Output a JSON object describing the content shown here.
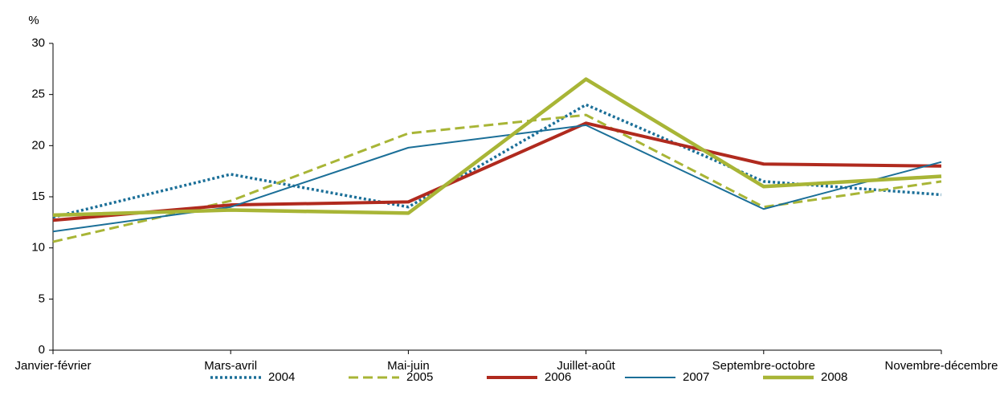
{
  "chart_data": {
    "type": "line",
    "y_label": "%",
    "categories": [
      "Janvier-février",
      "Mars-avril",
      "Mai-juin",
      "Juillet-août",
      "Septembre-octobre",
      "Novembre-décembre"
    ],
    "series": [
      {
        "name": "2004",
        "color": "#1b6f98",
        "style": "dotted",
        "width": 3.5,
        "values": [
          13.0,
          17.2,
          14.0,
          24.0,
          16.5,
          15.2
        ]
      },
      {
        "name": "2005",
        "color": "#a8b536",
        "style": "dashed",
        "width": 3,
        "values": [
          10.6,
          14.6,
          21.2,
          23.0,
          14.0,
          16.5
        ]
      },
      {
        "name": "2006",
        "color": "#b02a1e",
        "style": "solid",
        "width": 4,
        "values": [
          12.7,
          14.2,
          14.5,
          22.2,
          18.2,
          18.0
        ]
      },
      {
        "name": "2007",
        "color": "#1b6f98",
        "style": "solid",
        "width": 2,
        "values": [
          11.6,
          14.0,
          19.8,
          22.0,
          13.8,
          18.4
        ]
      },
      {
        "name": "2008",
        "color": "#a8b536",
        "style": "solid",
        "width": 4.5,
        "values": [
          13.2,
          13.7,
          13.4,
          26.5,
          16.0,
          17.0
        ]
      }
    ],
    "ylim": [
      0,
      30
    ],
    "yticks": [
      0,
      5,
      10,
      15,
      20,
      25,
      30
    ],
    "grid": false,
    "legend": "bottom"
  }
}
